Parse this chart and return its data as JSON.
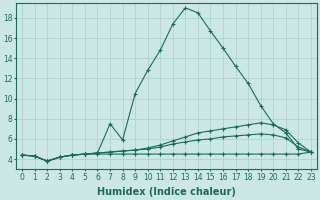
{
  "xlabel": "Humidex (Indice chaleur)",
  "ylabel": "",
  "xlim": [
    -0.5,
    23.5
  ],
  "ylim": [
    3.0,
    19.5
  ],
  "yticks": [
    4,
    6,
    8,
    10,
    12,
    14,
    16,
    18
  ],
  "xticks": [
    0,
    1,
    2,
    3,
    4,
    5,
    6,
    7,
    8,
    9,
    10,
    11,
    12,
    13,
    14,
    15,
    16,
    17,
    18,
    19,
    20,
    21,
    22,
    23
  ],
  "bg_color": "#cce8e4",
  "line_color": "#1a6b5e",
  "grid_color": "#aaceca",
  "lines": [
    {
      "x": [
        0,
        1,
        2,
        3,
        4,
        5,
        6,
        7,
        8,
        9,
        10,
        11,
        12,
        13,
        14,
        15,
        16,
        17,
        18,
        19,
        20,
        21,
        22,
        23
      ],
      "y": [
        4.4,
        4.3,
        3.8,
        4.2,
        4.4,
        4.5,
        4.6,
        7.5,
        5.9,
        10.5,
        12.8,
        14.8,
        17.4,
        19.0,
        18.5,
        16.7,
        15.0,
        13.2,
        11.5,
        9.3,
        7.5,
        6.6,
        5.0,
        4.7
      ]
    },
    {
      "x": [
        0,
        1,
        2,
        3,
        4,
        5,
        6,
        7,
        8,
        9,
        10,
        11,
        12,
        13,
        14,
        15,
        16,
        17,
        18,
        19,
        20,
        21,
        22,
        23
      ],
      "y": [
        4.4,
        4.3,
        3.8,
        4.2,
        4.4,
        4.5,
        4.6,
        4.7,
        4.8,
        4.9,
        5.1,
        5.4,
        5.8,
        6.2,
        6.6,
        6.8,
        7.0,
        7.2,
        7.4,
        7.6,
        7.4,
        6.9,
        5.6,
        4.7
      ]
    },
    {
      "x": [
        0,
        1,
        2,
        3,
        4,
        5,
        6,
        7,
        8,
        9,
        10,
        11,
        12,
        13,
        14,
        15,
        16,
        17,
        18,
        19,
        20,
        21,
        22,
        23
      ],
      "y": [
        4.4,
        4.3,
        3.8,
        4.2,
        4.4,
        4.5,
        4.6,
        4.7,
        4.8,
        4.9,
        5.0,
        5.2,
        5.5,
        5.7,
        5.9,
        6.0,
        6.2,
        6.3,
        6.4,
        6.5,
        6.4,
        6.1,
        5.2,
        4.7
      ]
    },
    {
      "x": [
        0,
        1,
        2,
        3,
        4,
        5,
        6,
        7,
        8,
        9,
        10,
        11,
        12,
        13,
        14,
        15,
        16,
        17,
        18,
        19,
        20,
        21,
        22,
        23
      ],
      "y": [
        4.4,
        4.3,
        3.8,
        4.2,
        4.4,
        4.5,
        4.5,
        4.5,
        4.5,
        4.5,
        4.5,
        4.5,
        4.5,
        4.5,
        4.5,
        4.5,
        4.5,
        4.5,
        4.5,
        4.5,
        4.5,
        4.5,
        4.5,
        4.7
      ]
    }
  ],
  "title_fontsize": 8,
  "tick_fontsize": 5.5,
  "label_fontsize": 7
}
